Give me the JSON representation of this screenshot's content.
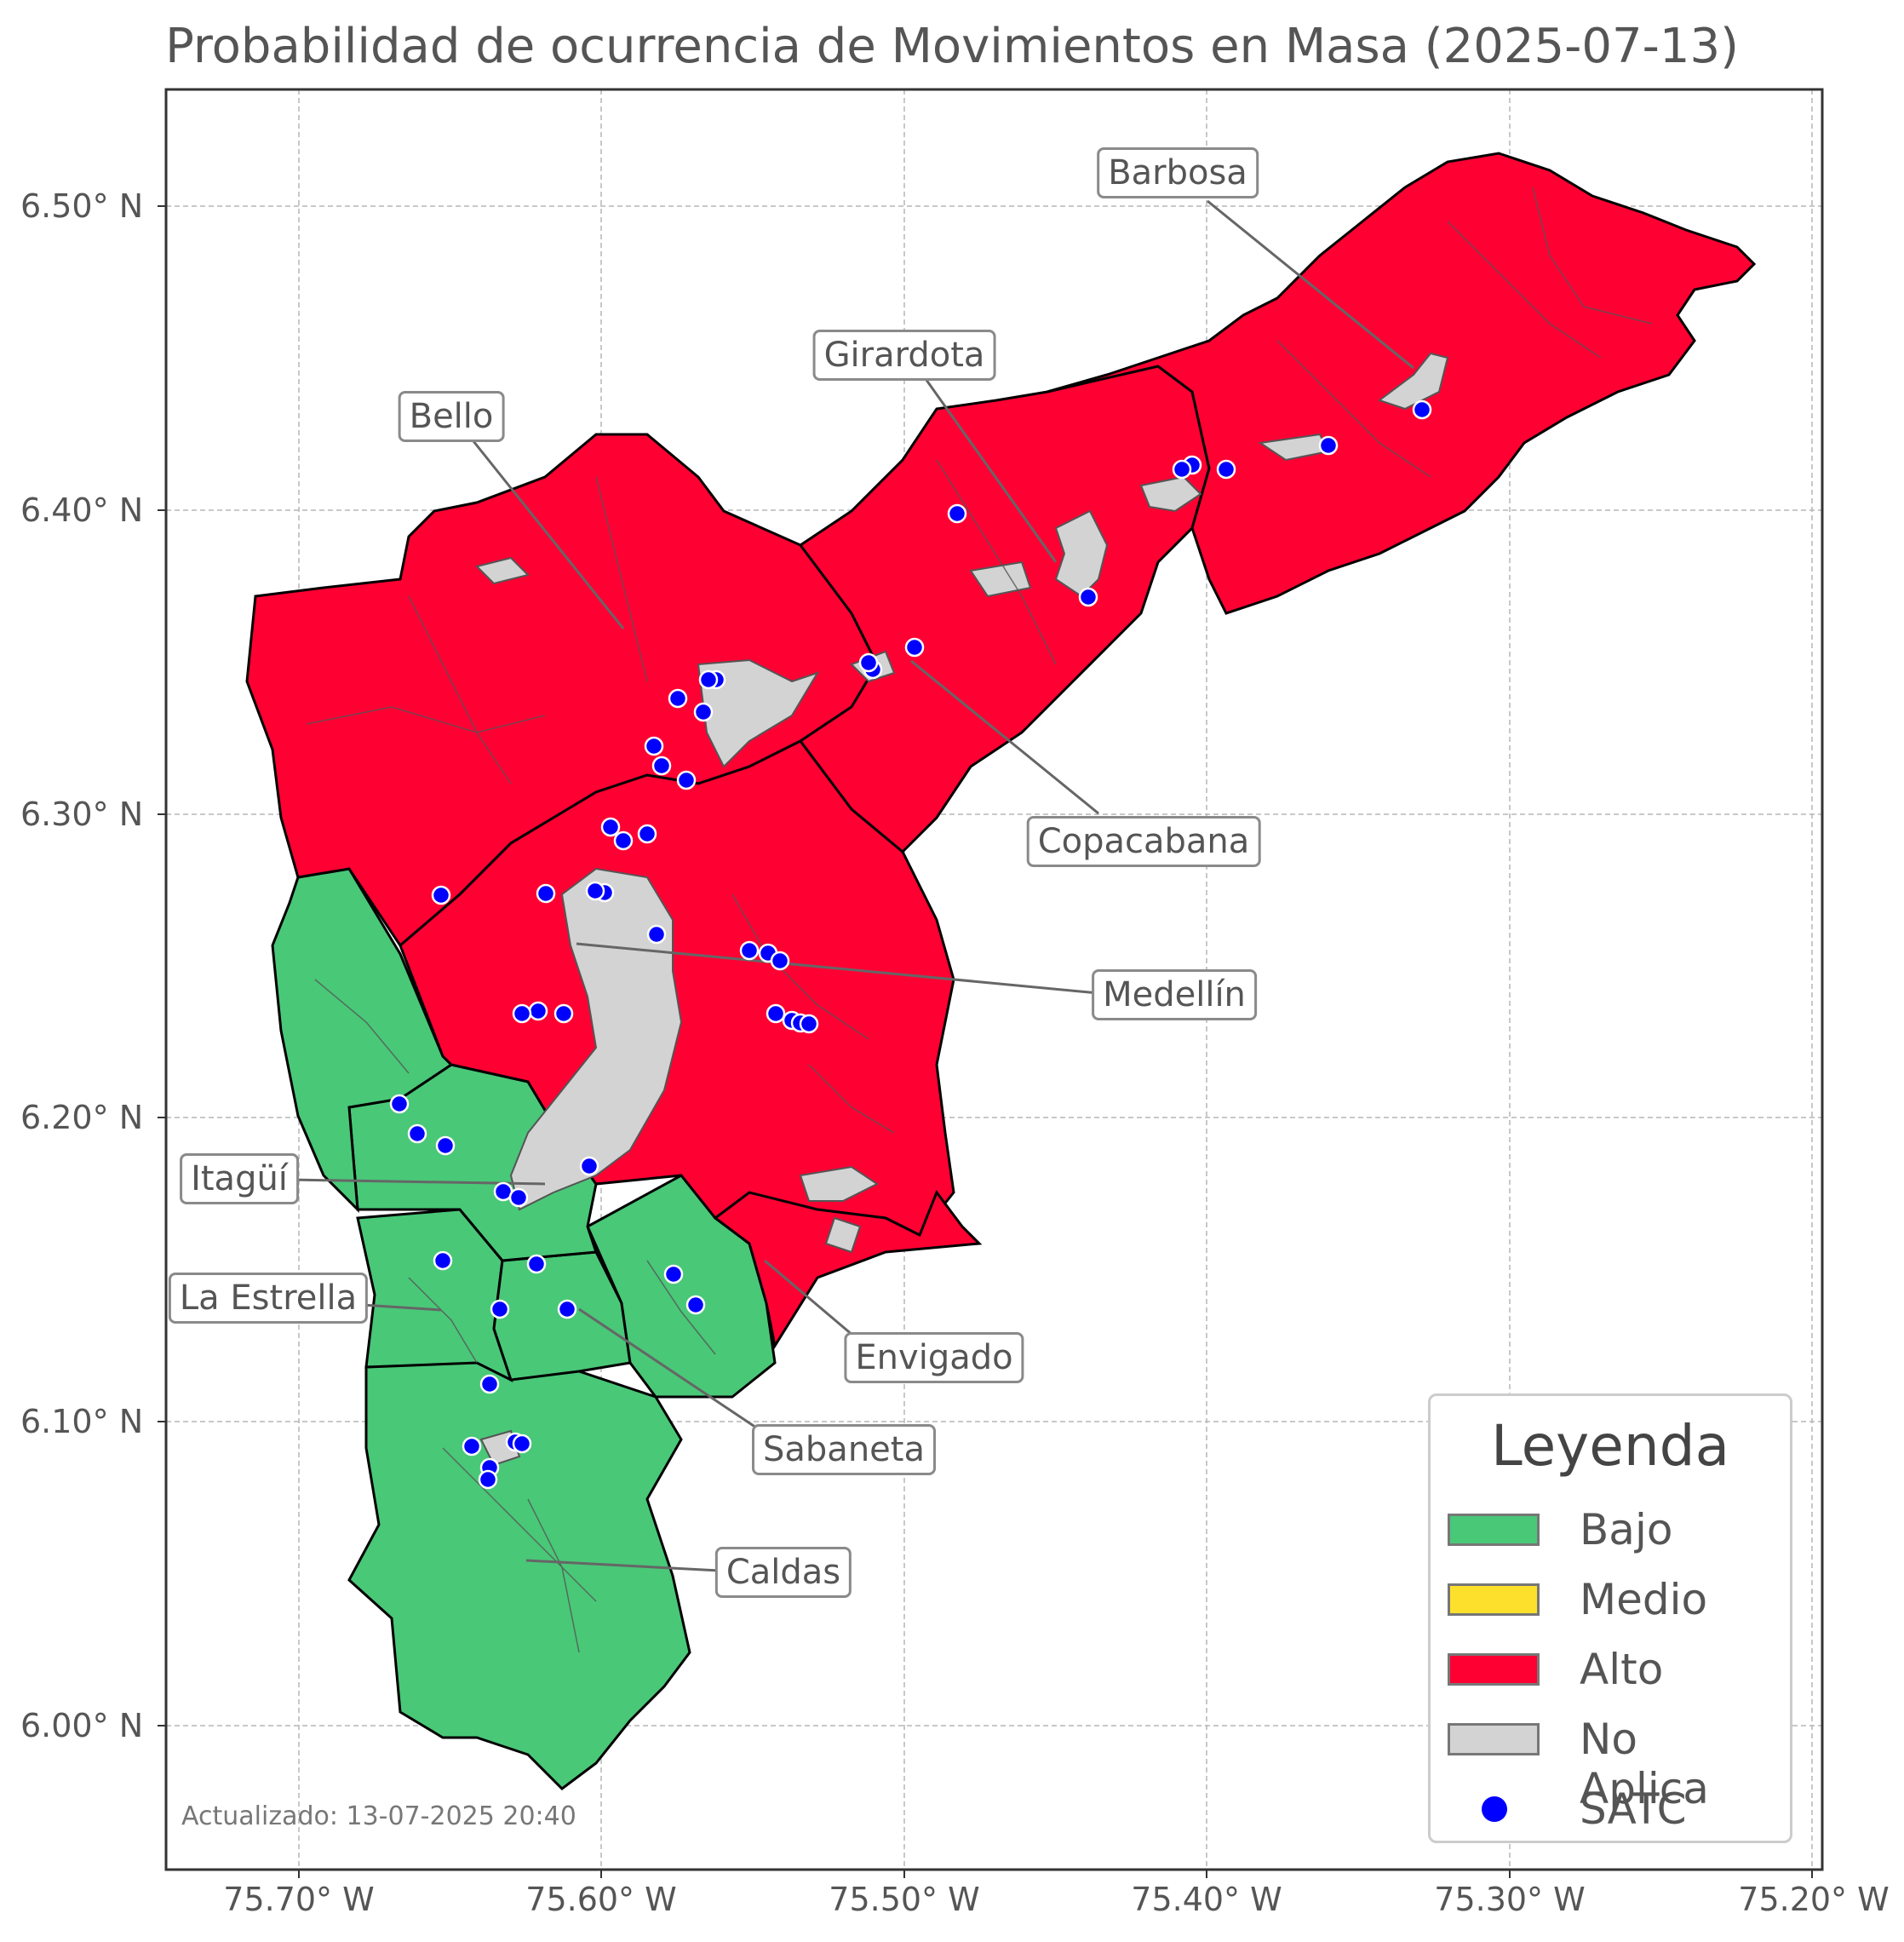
{
  "title": "Probabilidad de ocurrencia de Movimientos en Masa (2025-07-13)",
  "updated": "Actualizado: 13-07-2025 20:40",
  "axes": {
    "lat_ticks": [
      "6.50° N",
      "6.40° N",
      "6.30° N",
      "6.20° N",
      "6.10° N",
      "6.00° N"
    ],
    "lon_ticks": [
      "75.70° W",
      "75.60° W",
      "75.50° W",
      "75.40° W",
      "75.30° W",
      "75.20° W"
    ],
    "grid": true
  },
  "colors": {
    "bajo": "#49c878",
    "medio": "#fde02b",
    "alto": "#ff0033",
    "no_aplica": "#d3d3d3",
    "satc": "#0000ff"
  },
  "legend": {
    "title": "Leyenda",
    "placement": "bottom-right",
    "items": [
      {
        "label": "Bajo",
        "kind": "swatch",
        "color": "#49c878"
      },
      {
        "label": "Medio",
        "kind": "swatch",
        "color": "#fde02b"
      },
      {
        "label": "Alto",
        "kind": "swatch",
        "color": "#ff0033"
      },
      {
        "label": "No Aplica",
        "kind": "swatch",
        "color": "#d3d3d3"
      },
      {
        "label": "SATC",
        "kind": "dot",
        "color": "#0000ff"
      }
    ]
  },
  "municipalities": [
    {
      "name": "Barbosa",
      "level": "Alto"
    },
    {
      "name": "Girardota",
      "level": "Alto"
    },
    {
      "name": "Bello",
      "level": "Alto"
    },
    {
      "name": "Copacabana",
      "level": "Alto"
    },
    {
      "name": "Medellín",
      "level": "Alto"
    },
    {
      "name": "Itagüí",
      "level": "Bajo"
    },
    {
      "name": "La Estrella",
      "level": "Bajo"
    },
    {
      "name": "Envigado",
      "level": "Alto"
    },
    {
      "name": "Sabaneta",
      "level": "Bajo"
    },
    {
      "name": "Caldas",
      "level": "Bajo"
    }
  ]
}
